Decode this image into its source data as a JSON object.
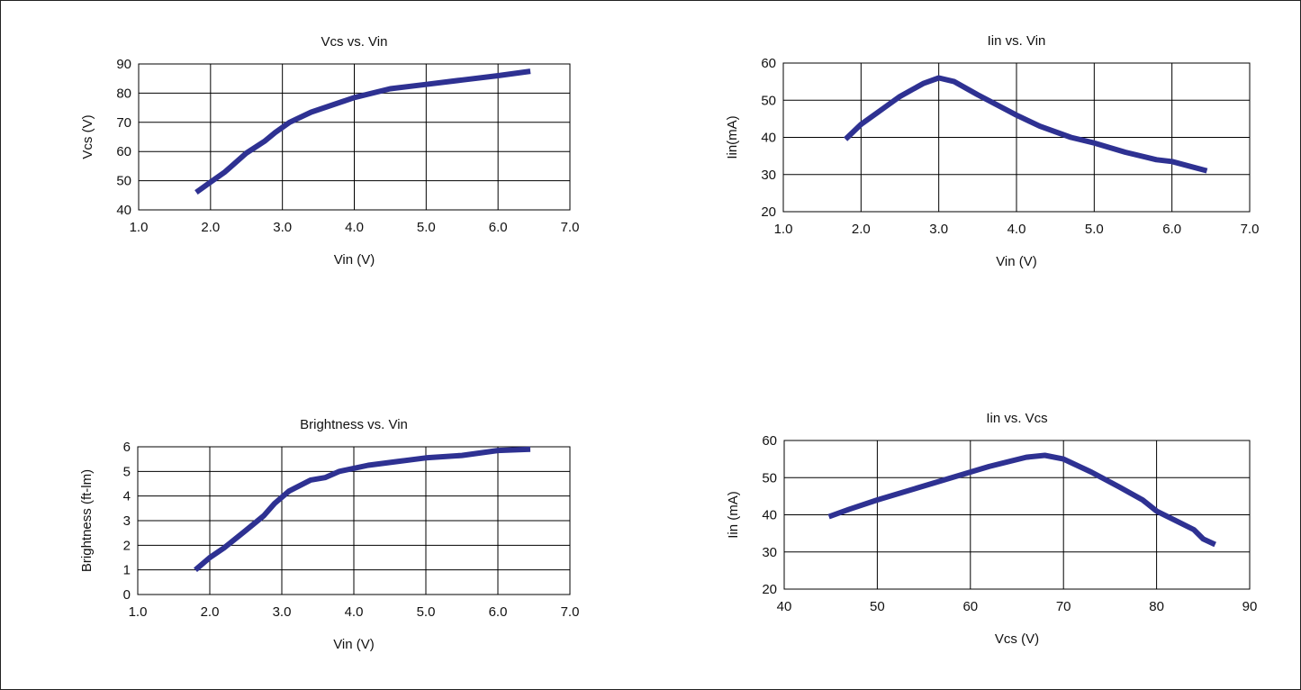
{
  "chart_data": [
    {
      "type": "line",
      "title": "Vcs vs. Vin",
      "xlabel": "Vin (V)",
      "ylabel": "Vcs (V)",
      "xlim": [
        1.0,
        7.0
      ],
      "ylim": [
        40,
        90
      ],
      "xticks": [
        "1.0",
        "2.0",
        "3.0",
        "4.0",
        "5.0",
        "6.0",
        "7.0"
      ],
      "yticks": [
        "40",
        "50",
        "60",
        "70",
        "80",
        "90"
      ],
      "series_color": "#2e3192",
      "grid": true,
      "x": [
        1.8,
        2.0,
        2.2,
        2.5,
        2.75,
        2.9,
        3.1,
        3.4,
        3.7,
        4.0,
        4.5,
        5.0,
        5.5,
        6.0,
        6.45
      ],
      "y": [
        46,
        49.5,
        53,
        59.5,
        63.5,
        66.5,
        70,
        73.5,
        76,
        78.5,
        81.5,
        83,
        84.5,
        86,
        87.5
      ]
    },
    {
      "type": "line",
      "title": "Iin vs. Vin",
      "xlabel": "Vin (V)",
      "ylabel": "Iin(mA)",
      "xlim": [
        1.0,
        7.0
      ],
      "ylim": [
        20,
        60
      ],
      "xticks": [
        "1.0",
        "2.0",
        "3.0",
        "4.0",
        "5.0",
        "6.0",
        "7.0"
      ],
      "yticks": [
        "20",
        "30",
        "40",
        "50",
        "60"
      ],
      "series_color": "#2e3192",
      "grid": true,
      "x": [
        1.8,
        2.0,
        2.3,
        2.5,
        2.8,
        3.0,
        3.2,
        3.5,
        4.0,
        4.3,
        4.7,
        5.0,
        5.4,
        5.8,
        6.0,
        6.45
      ],
      "y": [
        39.5,
        43.5,
        48,
        51,
        54.5,
        56,
        55,
        51.5,
        46,
        43,
        40,
        38.5,
        36,
        34,
        33.5,
        31
      ]
    },
    {
      "type": "line",
      "title": "Brightness vs. Vin",
      "xlabel": "Vin (V)",
      "ylabel": "Brightness (ft-lm)",
      "xlim": [
        1.0,
        7.0
      ],
      "ylim": [
        0,
        6
      ],
      "xticks": [
        "1.0",
        "2.0",
        "3.0",
        "4.0",
        "5.0",
        "6.0",
        "7.0"
      ],
      "yticks": [
        "0",
        "1",
        "2",
        "3",
        "4",
        "5",
        "6"
      ],
      "series_color": "#2e3192",
      "grid": true,
      "x": [
        1.8,
        2.0,
        2.2,
        2.5,
        2.75,
        2.9,
        3.1,
        3.4,
        3.6,
        3.8,
        4.2,
        4.6,
        5.0,
        5.5,
        6.0,
        6.45
      ],
      "y": [
        1.0,
        1.5,
        1.9,
        2.6,
        3.2,
        3.7,
        4.2,
        4.65,
        4.75,
        5.0,
        5.25,
        5.4,
        5.55,
        5.65,
        5.85,
        5.9
      ]
    },
    {
      "type": "line",
      "title": "Iin vs. Vcs",
      "xlabel": "Vcs (V)",
      "ylabel": "Iin (mA)",
      "xlim": [
        40,
        90
      ],
      "ylim": [
        20,
        60
      ],
      "xticks": [
        "40",
        "50",
        "60",
        "70",
        "80",
        "90"
      ],
      "yticks": [
        "20",
        "30",
        "40",
        "50",
        "60"
      ],
      "series_color": "#2e3192",
      "grid": true,
      "x": [
        44.8,
        47,
        50,
        54,
        58,
        62,
        66,
        68,
        70,
        73,
        76,
        78.5,
        80,
        82,
        84,
        85,
        86.3
      ],
      "y": [
        39.5,
        41.5,
        44,
        47,
        50,
        53,
        55.5,
        56,
        55,
        51.5,
        47.5,
        44,
        41,
        38.5,
        36,
        33.5,
        32
      ]
    }
  ]
}
